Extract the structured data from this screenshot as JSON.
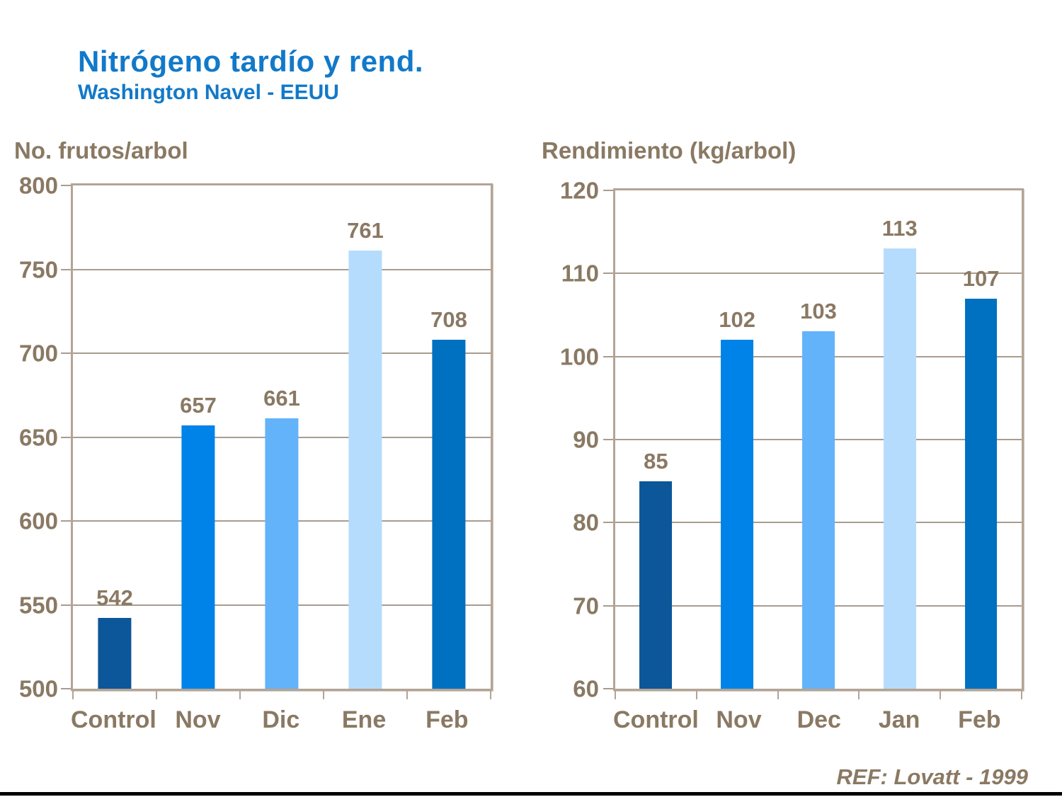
{
  "header": {
    "title": "Nitrógeno tardío y rend.",
    "subtitle": "Washington Navel - EEUU"
  },
  "footer": {
    "ref": "REF: Lovatt - 1999"
  },
  "colors": {
    "title_blue": "#1279C9",
    "text_taupe": "#8A7963",
    "frame": "#B3A496",
    "gridline": "#A99C8F",
    "bottom_bar": "#000000",
    "bar_colors": [
      "#0B5799",
      "#0083E8",
      "#63B3FA",
      "#B5DCFC",
      "#0070C0"
    ]
  },
  "chart_data": [
    {
      "type": "bar",
      "title": "No. frutos/arbol",
      "categories": [
        "Control",
        "Nov",
        "Dic",
        "Ene",
        "Feb"
      ],
      "values": [
        542,
        657,
        661,
        761,
        708
      ],
      "ylim": [
        500,
        800
      ],
      "yticks": [
        500,
        550,
        600,
        650,
        700,
        750,
        800
      ],
      "grid": true,
      "legend": false,
      "data_labels": true
    },
    {
      "type": "bar",
      "title": "Rendimiento (kg/arbol)",
      "categories": [
        "Control",
        "Nov",
        "Dec",
        "Jan",
        "Feb"
      ],
      "values": [
        85,
        102,
        103,
        113,
        107
      ],
      "ylim": [
        60,
        120
      ],
      "yticks": [
        60,
        70,
        80,
        90,
        100,
        110,
        120
      ],
      "grid": true,
      "legend": false,
      "data_labels": true
    }
  ]
}
